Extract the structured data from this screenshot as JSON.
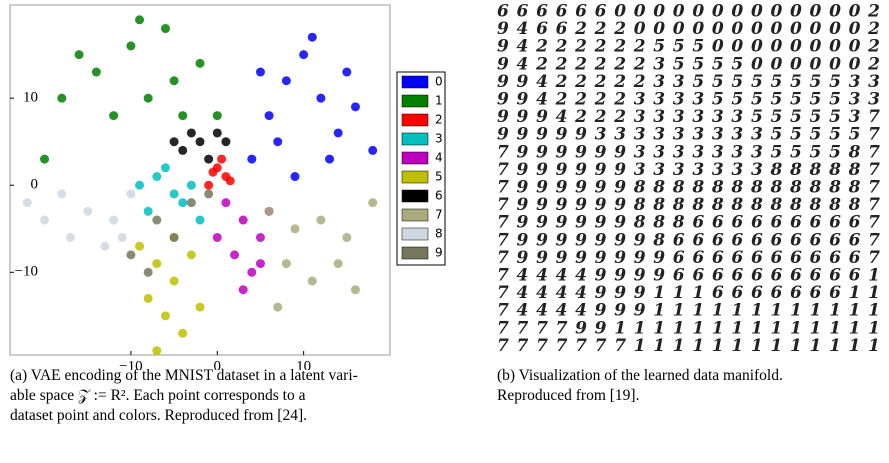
{
  "chart_data": {
    "type": "scatter",
    "xlim": [
      -24,
      20
    ],
    "ylim": [
      -19.5,
      20.7
    ],
    "xticks": [
      {
        "value": -10,
        "label": "−10"
      },
      0,
      10
    ],
    "yticks": [
      {
        "value": -10,
        "label": "−10"
      },
      0,
      10
    ],
    "legend": "right",
    "series": [
      {
        "name": "0",
        "color": "#0000ff",
        "x": [
          4,
          6,
          8,
          10,
          12,
          14,
          16,
          7,
          11,
          15,
          9,
          13,
          5,
          18
        ],
        "y": [
          3,
          8,
          12,
          15,
          10,
          6,
          9,
          5,
          17,
          13,
          1,
          3,
          13,
          4
        ]
      },
      {
        "name": "1",
        "color": "#007f00",
        "x": [
          -18,
          -14,
          -10,
          -6,
          -2,
          -12,
          -8,
          -4,
          -16,
          -9,
          -5,
          0,
          -20
        ],
        "y": [
          10,
          13,
          16,
          18,
          14,
          8,
          10,
          8,
          15,
          19,
          12,
          8,
          3
        ]
      },
      {
        "name": "2",
        "color": "#ff0000",
        "x": [
          -1,
          0,
          1,
          0.5,
          -0.5,
          1.5
        ],
        "y": [
          0,
          2,
          1,
          3,
          1.5,
          0.5
        ]
      },
      {
        "name": "3",
        "color": "#00bfbf",
        "x": [
          -9,
          -7,
          -5,
          -3,
          -8,
          -4,
          -6,
          -2
        ],
        "y": [
          0,
          1,
          -1,
          0,
          -3,
          -2,
          2,
          -4
        ]
      },
      {
        "name": "4",
        "color": "#bf00bf",
        "x": [
          1,
          3,
          5,
          2,
          4,
          6,
          0,
          3,
          5
        ],
        "y": [
          -2,
          -4,
          -6,
          -8,
          -10,
          -3,
          -6,
          -12,
          -9
        ]
      },
      {
        "name": "5",
        "color": "#bfbf00",
        "x": [
          -9,
          -7,
          -5,
          -3,
          -8,
          -6,
          -4,
          -2,
          -7,
          -5
        ],
        "y": [
          -7,
          -9,
          -11,
          -8,
          -13,
          -15,
          -17,
          -14,
          -19,
          -6
        ]
      },
      {
        "name": "6",
        "color": "#000000",
        "x": [
          -4,
          -2,
          0,
          -3,
          -1,
          1,
          -5
        ],
        "y": [
          4,
          5,
          6,
          6,
          3,
          5,
          5
        ]
      },
      {
        "name": "7",
        "color": "#a9ab7c",
        "x": [
          6,
          9,
          12,
          15,
          18,
          8,
          11,
          14,
          7,
          16
        ],
        "y": [
          -3,
          -5,
          -4,
          -6,
          -2,
          -9,
          -11,
          -9,
          -14,
          -12
        ]
      },
      {
        "name": "8",
        "color": "#cfd8e0",
        "x": [
          -22,
          -18,
          -15,
          -12,
          -10,
          -17,
          -13,
          -20,
          -11
        ],
        "y": [
          -2,
          -1,
          -3,
          -4,
          -1,
          -6,
          -7,
          -4,
          -6
        ]
      },
      {
        "name": "9",
        "color": "#77765a",
        "x": [
          -7,
          -3,
          -10,
          -5,
          -1,
          -8
        ],
        "y": [
          -4,
          -2,
          -8,
          -6,
          -1,
          -10
        ]
      }
    ]
  },
  "manifold": {
    "rows": [
      "66666600000000000002",
      "94662220000000000002",
      "94222222555000000002",
      "94222222355550000002",
      "99422222335555555533",
      "99422223333555555533",
      "99942223333335555537",
      "99999333333333555557",
      "79999993333333555587",
      "79999993333333888887",
      "79999998888888888887",
      "79999998888888888887",
      "79999998886666666667",
      "79999999866666666667",
      "79999999966666666667",
      "74444999966666666661",
      "74444999111666666611",
      "74444999111111111111",
      "77779911111111111111",
      "77777771111111111111"
    ]
  },
  "captions": {
    "a": [
      "(a) VAE encoding of the MNIST dataset in a latent vari-",
      "able space 𝒵 := R². Each point corresponds to a",
      "dataset point and colors. Reproduced from [24]."
    ],
    "b": [
      "(b) Visualization of the learned data manifold.",
      "Reproduced from [19]."
    ]
  }
}
